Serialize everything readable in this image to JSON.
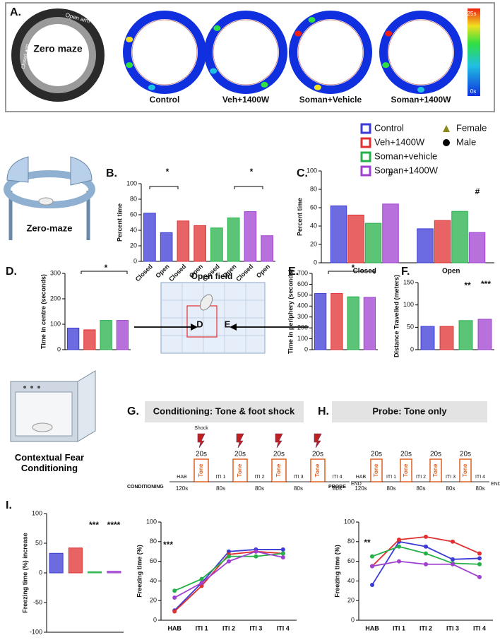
{
  "figure": {
    "panel_labels": [
      "A.",
      "B.",
      "C.",
      "D.",
      "E.",
      "F.",
      "G.",
      "H.",
      "I."
    ],
    "maze": {
      "title": "Zero maze",
      "closed": "Closed arm",
      "open": "Open arm"
    },
    "heatmap_labels": [
      "Control",
      "Veh+1400W",
      "Soman+Vehicle",
      "Soman+1400W"
    ],
    "colorbar": [
      "25s",
      "0s"
    ],
    "sex_legend": [
      {
        "name": "Female",
        "color": "#8a8a1a"
      },
      {
        "name": "Male",
        "color": "#000000"
      }
    ],
    "zero_maze_label": "Zero-maze",
    "open_field": {
      "title": "Open field",
      "center": "D",
      "periphery": "E"
    },
    "fear_label": "Contextual Fear Conditioning",
    "conditioning_title": "Conditioning: Tone & foot shock",
    "probe_title": "Probe: Tone only",
    "conditioning": {
      "label": "CONDITIONING",
      "shock": "Shock",
      "tone_duration": [
        "20s",
        "20s",
        "20s",
        "20s"
      ],
      "tone": [
        "Tone",
        "Tone",
        "Tone",
        "Tone"
      ],
      "phases": [
        "HAB",
        "ITI 1",
        "ITI 2",
        "ITI 3",
        "ITI 4"
      ],
      "end": "END",
      "durations": [
        "120s",
        "80s",
        "80s",
        "80s",
        "80s"
      ]
    },
    "probe": {
      "label": "PROBE",
      "tone_duration": [
        "20s",
        "20s",
        "20s",
        "20s"
      ],
      "tone": [
        "Tone",
        "Tone",
        "Tone",
        "Tone"
      ],
      "phases": [
        "HAB",
        "ITI 1",
        "ITI 2",
        "ITI 3",
        "ITI 4"
      ],
      "end": "END",
      "durations": [
        "120s",
        "80s",
        "80s",
        "80s",
        "80s"
      ]
    }
  },
  "chart_data": [
    {
      "type": "bar",
      "ylabel": "Percent time",
      "categories": [
        "Closed",
        "Open",
        "Closed",
        "Open",
        "Closed",
        "Open",
        "Closed",
        "Open"
      ],
      "values": [
        62,
        37,
        52,
        46,
        43,
        56,
        64,
        33
      ],
      "colors": [
        "#3b3bd6",
        "#3b3bd6",
        "#e03030",
        "#e03030",
        "#25b04a",
        "#25b04a",
        "#a040d0",
        "#a040d0"
      ],
      "ylim": [
        0,
        100
      ],
      "yticks": [
        0,
        20,
        40,
        60,
        80,
        100
      ],
      "annotations": [
        "*",
        "*"
      ]
    },
    {
      "type": "bar",
      "ylabel": "Percent time",
      "categories": [
        "Closed",
        "Open"
      ],
      "series": [
        {
          "name": "Control",
          "color": "#3b3bd6",
          "values": [
            62,
            37
          ]
        },
        {
          "name": "Veh+1400W",
          "color": "#e03030",
          "values": [
            52,
            46
          ]
        },
        {
          "name": "Soman+vehicle",
          "color": "#25b04a",
          "values": [
            43,
            56
          ]
        },
        {
          "name": "Soman+1400W",
          "color": "#a040d0",
          "values": [
            64,
            33
          ]
        }
      ],
      "ylim": [
        0,
        100
      ],
      "yticks": [
        0,
        20,
        40,
        60,
        80,
        100
      ],
      "annotations": [
        "#",
        "#"
      ]
    },
    {
      "type": "bar",
      "ylabel": "Time in centre (seconds)",
      "categories": [
        null,
        null,
        null,
        null
      ],
      "values": [
        85,
        78,
        115,
        115
      ],
      "colors": [
        "#3b3bd6",
        "#e03030",
        "#25b04a",
        "#a040d0"
      ],
      "ylim": [
        0,
        300
      ],
      "yticks": [
        0,
        100,
        200,
        300
      ],
      "annotations": [
        "*"
      ]
    },
    {
      "type": "bar",
      "ylabel": "Time in periphery (seconds)",
      "categories": [
        null,
        null,
        null,
        null
      ],
      "values": [
        515,
        515,
        485,
        480
      ],
      "colors": [
        "#3b3bd6",
        "#e03030",
        "#25b04a",
        "#a040d0"
      ],
      "ylim": [
        0,
        700
      ],
      "yticks": [
        0,
        100,
        200,
        300,
        400,
        500,
        600,
        700
      ],
      "annotations": [
        "*"
      ]
    },
    {
      "type": "bar",
      "ylabel": "Distance Travelled (meters)",
      "categories": [
        null,
        null,
        null,
        null
      ],
      "values": [
        52,
        52,
        65,
        68
      ],
      "colors": [
        "#3b3bd6",
        "#e03030",
        "#25b04a",
        "#a040d0"
      ],
      "ylim": [
        0,
        150
      ],
      "yticks": [
        0,
        50,
        100,
        150
      ],
      "annotations": [
        "**",
        "***"
      ]
    },
    {
      "type": "bar",
      "ylabel": "Freezing time (%) increase",
      "categories": [
        null,
        null,
        null,
        null
      ],
      "values": [
        33,
        42,
        2,
        3
      ],
      "colors": [
        "#3b3bd6",
        "#e03030",
        "#25b04a",
        "#a040d0"
      ],
      "ylim": [
        -100,
        100
      ],
      "yticks": [
        -100,
        -50,
        0,
        50,
        100
      ],
      "annotations": [
        "***",
        "****"
      ]
    },
    {
      "type": "line",
      "ylabel": "Freezing time (%)",
      "categories": [
        "HAB",
        "ITI 1",
        "ITI 2",
        "ITI 3",
        "ITI 4"
      ],
      "series": [
        {
          "color": "#3b3bd6",
          "values": [
            10,
            38,
            70,
            72,
            72
          ]
        },
        {
          "color": "#e03030",
          "values": [
            9,
            35,
            67,
            70,
            68
          ]
        },
        {
          "color": "#25b04a",
          "values": [
            30,
            42,
            65,
            65,
            68
          ]
        },
        {
          "color": "#a040d0",
          "values": [
            23,
            38,
            60,
            70,
            64
          ]
        }
      ],
      "ylim": [
        0,
        100
      ],
      "yticks": [
        0,
        20,
        40,
        60,
        80,
        100
      ],
      "annotations": [
        "***"
      ]
    },
    {
      "type": "line",
      "ylabel": "Freezing time (%)",
      "categories": [
        "HAB",
        "ITI 1",
        "ITI 2",
        "ITI 3",
        "ITI 4"
      ],
      "series": [
        {
          "color": "#3b3bd6",
          "values": [
            36,
            80,
            75,
            62,
            63
          ]
        },
        {
          "color": "#e03030",
          "values": [
            55,
            82,
            85,
            80,
            68
          ]
        },
        {
          "color": "#25b04a",
          "values": [
            65,
            75,
            68,
            58,
            57
          ]
        },
        {
          "color": "#a040d0",
          "values": [
            55,
            60,
            57,
            57,
            44
          ]
        }
      ],
      "ylim": [
        0,
        100
      ],
      "yticks": [
        0,
        20,
        40,
        60,
        80,
        100
      ],
      "annotations": [
        "**"
      ]
    }
  ]
}
